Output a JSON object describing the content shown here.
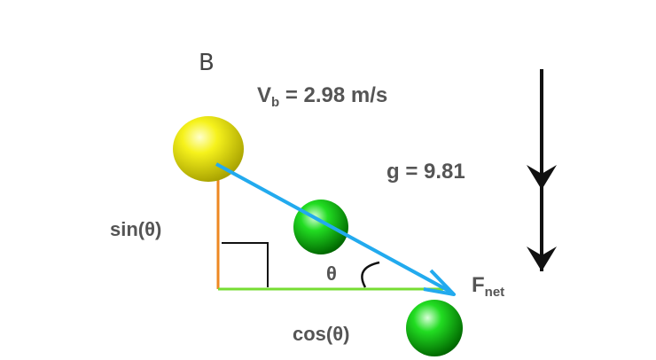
{
  "section_label": "B",
  "velocity_label": "V",
  "velocity_subscript": "b",
  "velocity_value": " = 2.98 m/s",
  "gravity_label": "g = 9.81",
  "sin_label": "sin(θ)",
  "cos_label": "cos(θ)",
  "theta_label": "θ",
  "force_label": "F",
  "force_subscript": "net",
  "colors": {
    "text": "#555555",
    "force_arrow": "#22aaee",
    "vertical_leg": "#ee8822",
    "horizontal_leg": "#77dd33",
    "gravity_arrow": "#111111",
    "ball_yellow": "#f2ee1a",
    "ball_green": "#22cc22"
  }
}
